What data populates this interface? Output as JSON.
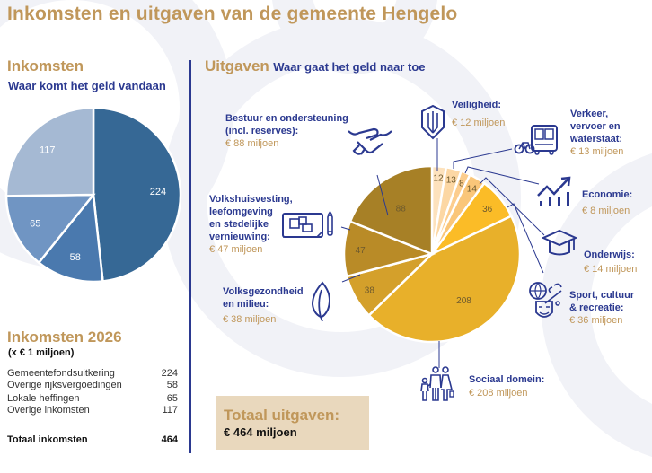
{
  "title": "Inkomsten en uitgaven van de gemeente Hengelo",
  "inkomsten": {
    "heading": "Inkomsten",
    "subheading": "Waar komt het geld vandaan",
    "table_title": "Inkomsten 2026",
    "table_unit": "(x € 1 miljoen)",
    "rows": [
      {
        "label": "Gemeentefondsuitkering",
        "value": "224"
      },
      {
        "label": "Overige rijksvergoedingen",
        "value": "58"
      },
      {
        "label": "Lokale heffingen",
        "value": "65"
      },
      {
        "label": "Overige inkomsten",
        "value": "117"
      }
    ],
    "total_label": "Totaal inkomsten",
    "total_value": "464"
  },
  "uitgaven": {
    "heading": "Uitgaven",
    "subheading": "Waar gaat het geld naar toe",
    "total_label": "Totaal uitgaven:",
    "total_value": "€ 464 miljoen",
    "callouts": [
      {
        "id": "veiligheid",
        "title": "Veiligheid:",
        "amount": "€ 12 miljoen",
        "icon": "shield-icon"
      },
      {
        "id": "verkeer",
        "title": "Verkeer,\nvervoer en\nwaterstaat:",
        "amount": "€ 13 miljoen",
        "icon": "bus-bicycle-icon"
      },
      {
        "id": "economie",
        "title": "Economie:",
        "amount": "€ 8 miljoen",
        "icon": "growth-chart-icon"
      },
      {
        "id": "onderwijs",
        "title": "Onderwijs:",
        "amount": "€ 14 miljoen",
        "icon": "graduation-cap-icon"
      },
      {
        "id": "sport",
        "title": "Sport, cultuur\n& recreatie:",
        "amount": "€ 36 miljoen",
        "icon": "sport-culture-icon"
      },
      {
        "id": "sociaal",
        "title": "Sociaal domein:",
        "amount": "€ 208 miljoen",
        "icon": "family-icon"
      },
      {
        "id": "volksgezondheid",
        "title": "Volksgezondheid\nen milieu:",
        "amount": "€ 38 miljoen",
        "icon": "leaf-icon"
      },
      {
        "id": "volkshuisvesting",
        "title": "Volkshuisvesting,\nleefomgeving\nen stedelijke\nvernieuwing:",
        "amount": "€ 47 miljoen",
        "icon": "blueprint-icon"
      },
      {
        "id": "bestuur",
        "title": "Bestuur en ondersteuning\n(incl. reserves):",
        "amount": "€ 88 miljoen",
        "icon": "handshake-icon"
      }
    ]
  },
  "colors": {
    "gold": "#c0975a",
    "navy": "#2b3990"
  },
  "chart_data": [
    {
      "type": "pie",
      "title": "Inkomsten",
      "start": "12 o'clock, clockwise",
      "categories": [
        "Gemeentefondsuitkering",
        "Overige rijksvergoedingen",
        "Lokale heffingen",
        "Overige inkomsten"
      ],
      "values": [
        224,
        58,
        65,
        117
      ],
      "colors": [
        "#366895",
        "#4a79ae",
        "#7095c3",
        "#a5b9d3"
      ],
      "data_labels": [
        "224",
        "58",
        "65",
        "117"
      ]
    },
    {
      "type": "pie",
      "title": "Uitgaven",
      "start": "12 o'clock, clockwise",
      "categories": [
        "Veiligheid",
        "Verkeer, vervoer en waterstaat",
        "Economie",
        "Onderwijs",
        "Sport, cultuur & recreatie",
        "Sociaal domein",
        "Volksgezondheid en milieu",
        "Volkshuisvesting, leefomgeving en stedelijke vernieuwing",
        "Bestuur en ondersteuning (incl. reserves)"
      ],
      "values": [
        12,
        13,
        8,
        14,
        36,
        208,
        38,
        47,
        88
      ],
      "colors": [
        "#fde2bd",
        "#fcd7a4",
        "#fccd8e",
        "#fac679",
        "#fbbc27",
        "#e8b02a",
        "#d4a02b",
        "#b98b27",
        "#a78026"
      ],
      "data_labels": [
        "12",
        "13",
        "8",
        "14",
        "36",
        "208",
        "38",
        "47",
        "88"
      ]
    }
  ]
}
